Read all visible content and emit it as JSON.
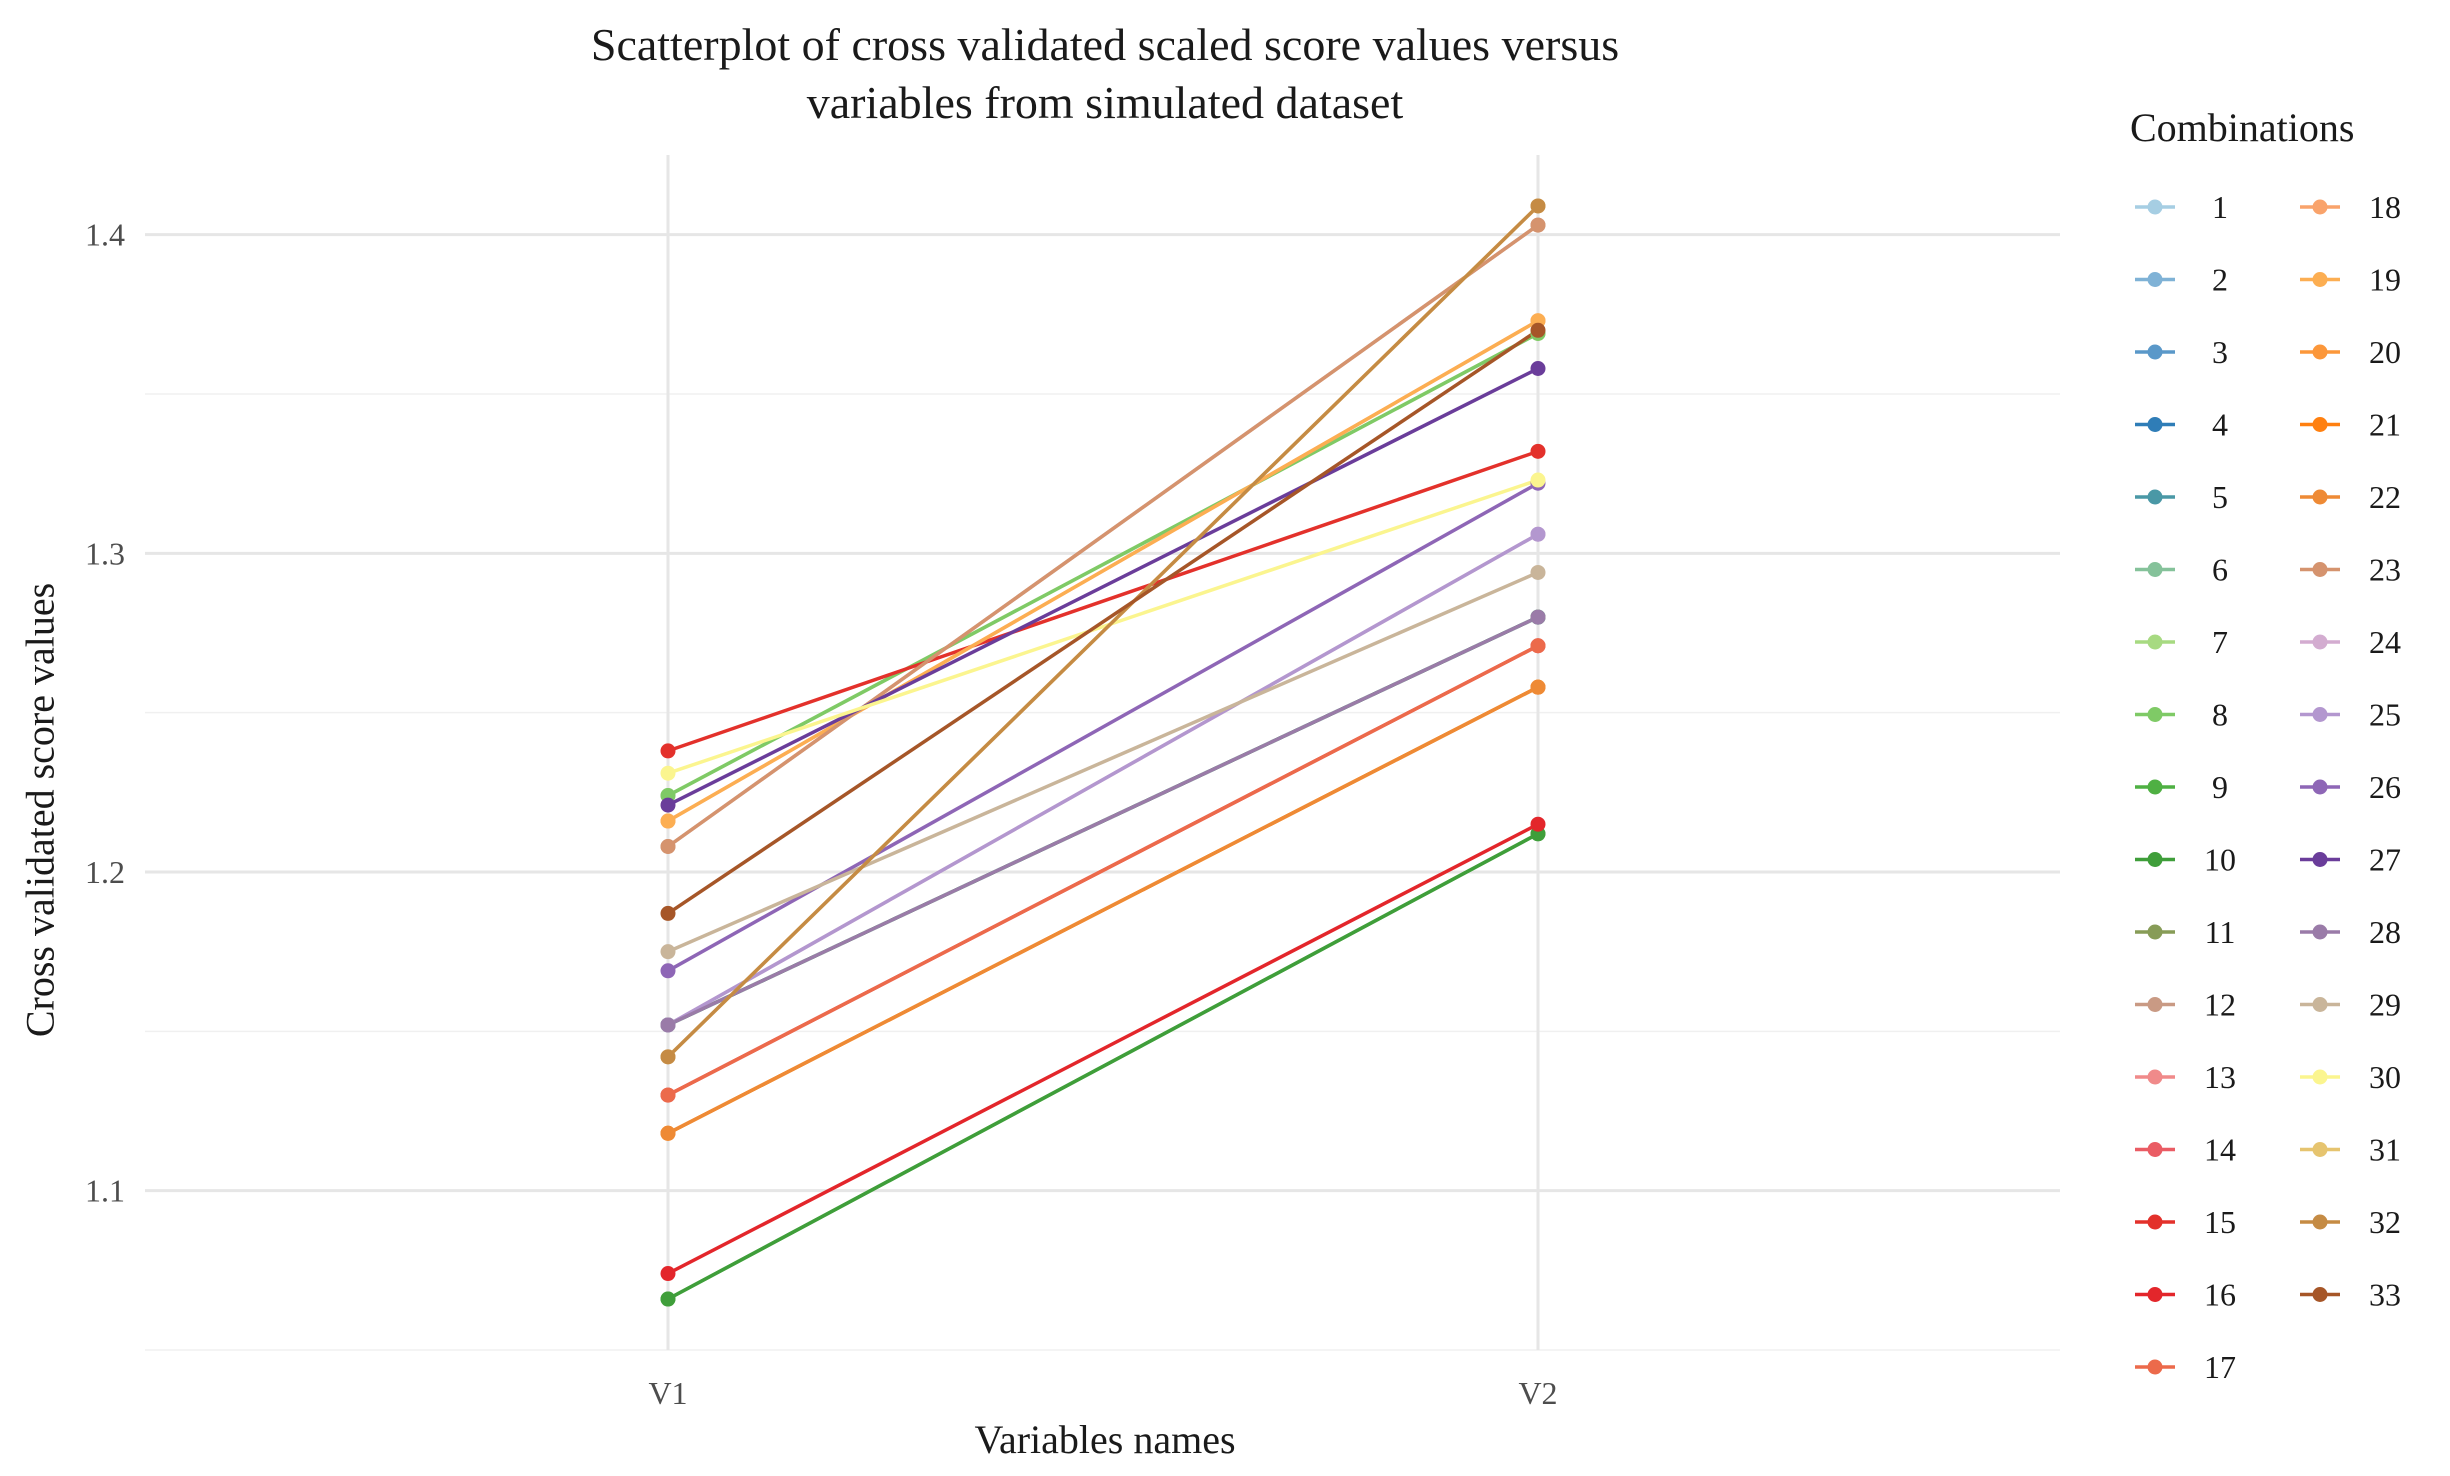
{
  "chart_data": {
    "type": "line",
    "title_lines": [
      "Scatterplot of cross validated scaled score values versus",
      "variables from simulated dataset"
    ],
    "xlabel": "Variables names",
    "ylabel": "Cross validated score values",
    "categories": [
      "V1",
      "V2"
    ],
    "ylim": [
      1.05,
      1.425
    ],
    "yticks": [
      1.1,
      1.2,
      1.3,
      1.4
    ],
    "ytick_labels": [
      "1.1",
      "1.2",
      "1.3",
      "1.4"
    ],
    "grid": true,
    "legend_title": "Combinations",
    "legend_position": "right",
    "series": [
      {
        "name": "1",
        "color": "#a6cee3",
        "values": [
          1.152,
          1.28
        ]
      },
      {
        "name": "2",
        "color": "#7fb2d6",
        "values": [
          1.152,
          1.28
        ]
      },
      {
        "name": "3",
        "color": "#5a98c9",
        "values": [
          1.152,
          1.28
        ]
      },
      {
        "name": "4",
        "color": "#2f7db7",
        "values": [
          1.152,
          1.28
        ]
      },
      {
        "name": "5",
        "color": "#4a98a6",
        "values": [
          1.152,
          1.28
        ]
      },
      {
        "name": "6",
        "color": "#85c29a",
        "values": [
          1.152,
          1.28
        ]
      },
      {
        "name": "7",
        "color": "#a7da81",
        "values": [
          1.224,
          1.369
        ]
      },
      {
        "name": "8",
        "color": "#7fca66",
        "values": [
          1.224,
          1.369
        ]
      },
      {
        "name": "9",
        "color": "#4fb043",
        "values": [
          1.066,
          1.212
        ]
      },
      {
        "name": "10",
        "color": "#3f9e3a",
        "values": [
          1.066,
          1.212
        ]
      },
      {
        "name": "11",
        "color": "#879c57",
        "values": [
          1.152,
          1.28
        ]
      },
      {
        "name": "12",
        "color": "#c99a84",
        "values": [
          1.208,
          1.403
        ]
      },
      {
        "name": "13",
        "color": "#f08a8a",
        "values": [
          1.13,
          1.271
        ]
      },
      {
        "name": "14",
        "color": "#ea5c64",
        "values": [
          1.13,
          1.271
        ]
      },
      {
        "name": "15",
        "color": "#e3312b",
        "values": [
          1.238,
          1.332
        ]
      },
      {
        "name": "16",
        "color": "#e3262b",
        "values": [
          1.074,
          1.215
        ]
      },
      {
        "name": "17",
        "color": "#ec6a4b",
        "values": [
          1.13,
          1.271
        ]
      },
      {
        "name": "18",
        "color": "#f9a36b",
        "values": [
          1.216,
          1.373
        ]
      },
      {
        "name": "19",
        "color": "#fcae52",
        "values": [
          1.216,
          1.373
        ]
      },
      {
        "name": "20",
        "color": "#fc973a",
        "values": [
          1.118,
          1.258
        ]
      },
      {
        "name": "21",
        "color": "#ff8010",
        "values": [
          1.118,
          1.258
        ]
      },
      {
        "name": "22",
        "color": "#ee8a35",
        "values": [
          1.118,
          1.258
        ]
      },
      {
        "name": "23",
        "color": "#d5936e",
        "values": [
          1.208,
          1.403
        ]
      },
      {
        "name": "24",
        "color": "#d3acd0",
        "values": [
          1.152,
          1.306
        ]
      },
      {
        "name": "25",
        "color": "#b397cf",
        "values": [
          1.152,
          1.306
        ]
      },
      {
        "name": "26",
        "color": "#8e66b6",
        "values": [
          1.169,
          1.322
        ]
      },
      {
        "name": "27",
        "color": "#6a3d9a",
        "values": [
          1.221,
          1.358
        ]
      },
      {
        "name": "28",
        "color": "#9a7ba8",
        "values": [
          1.152,
          1.28
        ]
      },
      {
        "name": "29",
        "color": "#c9b59a",
        "values": [
          1.175,
          1.294
        ]
      },
      {
        "name": "30",
        "color": "#fbf58f",
        "values": [
          1.231,
          1.323
        ]
      },
      {
        "name": "31",
        "color": "#e6c46f",
        "values": [
          1.142,
          1.409
        ]
      },
      {
        "name": "32",
        "color": "#c58b44",
        "values": [
          1.142,
          1.409
        ]
      },
      {
        "name": "33",
        "color": "#a65628",
        "values": [
          1.187,
          1.37
        ]
      }
    ]
  }
}
